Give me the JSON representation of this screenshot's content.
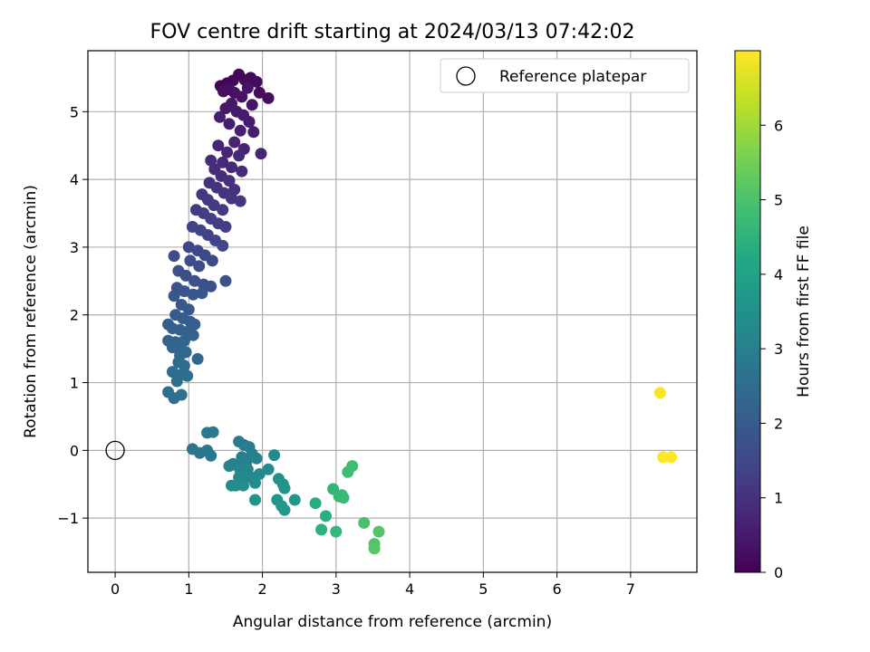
{
  "chart_data": {
    "type": "scatter",
    "title": "FOV centre drift starting at 2024/03/13 07:42:02",
    "xlabel": "Angular distance from reference (arcmin)",
    "ylabel": "Rotation from reference (arcmin)",
    "xlim": [
      -0.37,
      7.9
    ],
    "ylim": [
      -1.8,
      5.9
    ],
    "x_ticks": [
      0,
      1,
      2,
      3,
      4,
      5,
      6,
      7
    ],
    "y_ticks": [
      -1,
      0,
      1,
      2,
      3,
      4,
      5
    ],
    "grid": true,
    "legend": {
      "placement": "top-right",
      "entries": [
        "Reference platepar"
      ]
    },
    "reference_point": {
      "name": "Reference platepar",
      "x": 0,
      "y": 0,
      "marker": "open-circle"
    },
    "colorbar": {
      "label": "Hours from first FF file",
      "colormap": "viridis",
      "range": [
        0,
        7
      ],
      "ticks": [
        0,
        1,
        2,
        3,
        4,
        5,
        6
      ]
    },
    "points": [
      [
        1.43,
        5.38,
        0.05
      ],
      [
        1.52,
        5.42,
        0.08
      ],
      [
        1.6,
        5.46,
        0.1
      ],
      [
        1.68,
        5.55,
        0.12
      ],
      [
        1.76,
        5.47,
        0.15
      ],
      [
        1.84,
        5.5,
        0.18
      ],
      [
        1.92,
        5.44,
        0.2
      ],
      [
        1.96,
        5.28,
        0.22
      ],
      [
        2.08,
        5.2,
        0.25
      ],
      [
        1.47,
        5.3,
        0.28
      ],
      [
        1.55,
        5.33,
        0.3
      ],
      [
        1.62,
        5.28,
        0.32
      ],
      [
        1.72,
        5.22,
        0.35
      ],
      [
        1.8,
        5.35,
        0.38
      ],
      [
        1.86,
        5.1,
        0.4
      ],
      [
        1.58,
        5.12,
        0.42
      ],
      [
        1.5,
        5.05,
        0.45
      ],
      [
        1.65,
        5.0,
        0.48
      ],
      [
        1.74,
        4.95,
        0.5
      ],
      [
        1.82,
        4.85,
        0.52
      ],
      [
        1.88,
        4.7,
        0.55
      ],
      [
        1.42,
        4.92,
        0.58
      ],
      [
        1.55,
        4.82,
        0.6
      ],
      [
        1.7,
        4.72,
        0.62
      ],
      [
        1.62,
        4.55,
        0.65
      ],
      [
        1.75,
        4.45,
        0.68
      ],
      [
        1.98,
        4.38,
        0.7
      ],
      [
        1.4,
        4.5,
        0.72
      ],
      [
        1.52,
        4.4,
        0.75
      ],
      [
        1.68,
        4.35,
        0.78
      ],
      [
        1.46,
        4.25,
        0.8
      ],
      [
        1.58,
        4.18,
        0.82
      ],
      [
        1.72,
        4.12,
        0.85
      ],
      [
        1.3,
        4.28,
        0.88
      ],
      [
        1.35,
        4.15,
        0.9
      ],
      [
        1.44,
        4.05,
        0.92
      ],
      [
        1.55,
        3.98,
        0.95
      ],
      [
        1.62,
        3.85,
        0.98
      ],
      [
        1.28,
        3.95,
        1.0
      ],
      [
        1.38,
        3.88,
        1.02
      ],
      [
        1.48,
        3.8,
        1.05
      ],
      [
        1.58,
        3.72,
        1.08
      ],
      [
        1.7,
        3.68,
        1.1
      ],
      [
        1.18,
        3.78,
        1.12
      ],
      [
        1.26,
        3.7,
        1.15
      ],
      [
        1.34,
        3.62,
        1.18
      ],
      [
        1.46,
        3.55,
        1.2
      ],
      [
        1.1,
        3.55,
        1.22
      ],
      [
        1.2,
        3.5,
        1.25
      ],
      [
        1.3,
        3.42,
        1.28
      ],
      [
        1.4,
        3.35,
        1.3
      ],
      [
        1.5,
        3.3,
        1.32
      ],
      [
        1.05,
        3.3,
        1.35
      ],
      [
        1.16,
        3.25,
        1.38
      ],
      [
        1.26,
        3.18,
        1.4
      ],
      [
        1.36,
        3.1,
        1.42
      ],
      [
        1.46,
        3.02,
        1.45
      ],
      [
        1.0,
        3.0,
        1.48
      ],
      [
        1.12,
        2.95,
        1.5
      ],
      [
        1.22,
        2.88,
        1.52
      ],
      [
        1.32,
        2.8,
        1.55
      ],
      [
        0.8,
        2.87,
        1.58
      ],
      [
        1.02,
        2.8,
        1.6
      ],
      [
        1.14,
        2.72,
        1.62
      ],
      [
        0.86,
        2.65,
        1.65
      ],
      [
        0.96,
        2.58,
        1.68
      ],
      [
        1.08,
        2.5,
        1.7
      ],
      [
        1.2,
        2.45,
        1.72
      ],
      [
        1.3,
        2.42,
        1.75
      ],
      [
        1.5,
        2.5,
        1.78
      ],
      [
        0.84,
        2.4,
        1.8
      ],
      [
        0.94,
        2.35,
        1.82
      ],
      [
        1.06,
        2.3,
        1.85
      ],
      [
        1.18,
        2.32,
        1.88
      ],
      [
        0.8,
        2.28,
        1.9
      ],
      [
        0.9,
        2.15,
        1.92
      ],
      [
        1.0,
        2.08,
        1.95
      ],
      [
        0.82,
        2.0,
        1.98
      ],
      [
        0.92,
        1.95,
        2.0
      ],
      [
        1.02,
        1.9,
        2.02
      ],
      [
        1.08,
        1.86,
        2.05
      ],
      [
        0.72,
        1.86,
        2.08
      ],
      [
        0.78,
        1.8,
        2.1
      ],
      [
        0.88,
        1.78,
        2.12
      ],
      [
        0.98,
        1.75,
        2.15
      ],
      [
        1.06,
        1.7,
        2.18
      ],
      [
        0.72,
        1.62,
        2.2
      ],
      [
        0.82,
        1.6,
        2.22
      ],
      [
        0.94,
        1.62,
        2.25
      ],
      [
        0.86,
        1.5,
        2.28
      ],
      [
        0.96,
        1.45,
        2.3
      ],
      [
        0.78,
        1.52,
        2.32
      ],
      [
        0.88,
        1.4,
        2.35
      ],
      [
        1.12,
        1.35,
        2.38
      ],
      [
        0.86,
        1.3,
        2.4
      ],
      [
        0.94,
        1.25,
        2.42
      ],
      [
        0.78,
        1.16,
        2.45
      ],
      [
        0.9,
        1.12,
        2.48
      ],
      [
        0.98,
        1.1,
        2.5
      ],
      [
        0.84,
        1.02,
        2.52
      ],
      [
        0.72,
        0.86,
        2.55
      ],
      [
        0.8,
        0.77,
        2.58
      ],
      [
        0.9,
        0.82,
        2.6
      ],
      [
        1.05,
        0.02,
        2.7
      ],
      [
        1.15,
        -0.04,
        2.75
      ],
      [
        1.25,
        0.0,
        2.78
      ],
      [
        1.3,
        -0.08,
        2.8
      ],
      [
        1.25,
        0.26,
        2.82
      ],
      [
        1.33,
        0.27,
        2.85
      ],
      [
        1.68,
        0.13,
        2.9
      ],
      [
        1.75,
        0.08,
        2.92
      ],
      [
        1.82,
        0.05,
        2.95
      ],
      [
        1.86,
        -0.05,
        2.98
      ],
      [
        1.72,
        -0.1,
        3.0
      ],
      [
        1.92,
        -0.12,
        3.02
      ],
      [
        1.78,
        -0.18,
        3.05
      ],
      [
        1.65,
        -0.22,
        3.08
      ],
      [
        1.55,
        -0.23,
        3.1
      ],
      [
        1.6,
        -0.2,
        3.12
      ],
      [
        1.7,
        -0.3,
        3.15
      ],
      [
        1.8,
        -0.28,
        3.18
      ],
      [
        1.68,
        -0.4,
        3.2
      ],
      [
        1.76,
        -0.38,
        3.22
      ],
      [
        1.85,
        -0.4,
        3.25
      ],
      [
        1.96,
        -0.35,
        3.28
      ],
      [
        2.08,
        -0.28,
        3.3
      ],
      [
        2.16,
        -0.07,
        3.32
      ],
      [
        1.64,
        -0.52,
        3.35
      ],
      [
        1.58,
        -0.52,
        3.38
      ],
      [
        1.74,
        -0.52,
        3.4
      ],
      [
        1.9,
        -0.48,
        3.42
      ],
      [
        2.22,
        -0.42,
        3.5
      ],
      [
        2.28,
        -0.5,
        3.55
      ],
      [
        2.3,
        -0.56,
        3.58
      ],
      [
        1.9,
        -0.73,
        3.6
      ],
      [
        2.2,
        -0.73,
        3.65
      ],
      [
        2.26,
        -0.82,
        3.7
      ],
      [
        2.3,
        -0.88,
        3.72
      ],
      [
        2.44,
        -0.73,
        3.75
      ],
      [
        2.72,
        -0.78,
        4.3
      ],
      [
        2.86,
        -0.97,
        4.4
      ],
      [
        2.8,
        -1.17,
        4.45
      ],
      [
        2.96,
        -0.57,
        4.6
      ],
      [
        3.0,
        -1.2,
        4.62
      ],
      [
        3.04,
        -0.68,
        4.65
      ],
      [
        3.08,
        -0.66,
        4.68
      ],
      [
        3.1,
        -0.7,
        4.7
      ],
      [
        3.16,
        -0.32,
        4.8
      ],
      [
        3.22,
        -0.23,
        4.82
      ],
      [
        3.38,
        -1.07,
        4.95
      ],
      [
        3.52,
        -1.38,
        5.05
      ],
      [
        3.58,
        -1.2,
        5.1
      ],
      [
        3.52,
        -1.45,
        5.12
      ],
      [
        7.4,
        0.85,
        6.95
      ],
      [
        7.44,
        -0.1,
        6.97
      ],
      [
        7.55,
        -0.1,
        7.0
      ]
    ]
  }
}
